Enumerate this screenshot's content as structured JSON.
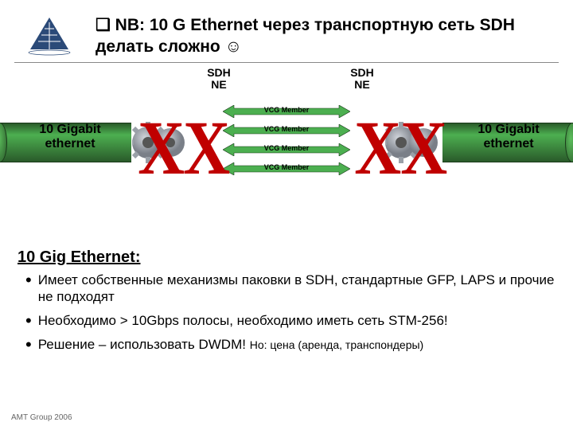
{
  "title_prefix": "❑ ",
  "title": "NB: 10 G Ethernet через транспортную сеть SDH делать сложно ☺",
  "logo": {
    "bg": "#ffffff",
    "tri": "#2b4a78"
  },
  "diagram": {
    "sdh_left": "SDH\nNE",
    "sdh_right": "SDH\nNE",
    "gig_left": "10 Gigabit\nethernet",
    "gig_right": "10 Gigabit\nethernet",
    "vcg_text": "VCG Member",
    "vcg_count": 4,
    "vcg_arrow_fill": "#4caf50",
    "vcg_arrow_stroke": "#1a3a1a",
    "pipe_green_a": "#4caf50",
    "pipe_green_b": "#2a5a2a",
    "gear_color": "#9aa0a8",
    "x_color": "#c00000"
  },
  "subhead": "10 Gig Ethernet:",
  "bullets": [
    "Имеет собственные механизмы паковки в SDH, стандартные GFP, LAPS и прочие не подходят",
    "Необходимо > 10Gbps полосы,  необходимо иметь сеть STM-256!",
    "Решение – использовать DWDM! "
  ],
  "bullet2_tail": "Но: цена (аренда, транспондеры)",
  "footer": "AMT Group 2006"
}
